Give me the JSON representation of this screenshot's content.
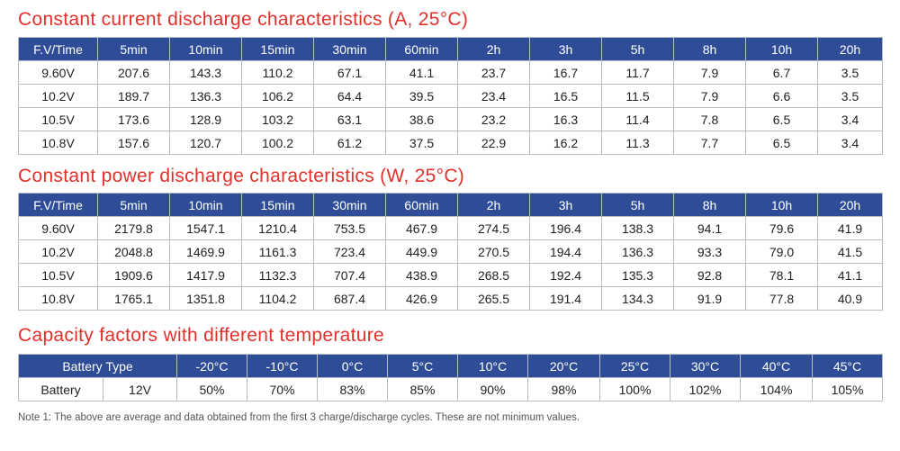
{
  "current": {
    "title": "Constant current discharge characteristics (A, 25°C)",
    "headers": [
      "F.V/Time",
      "5min",
      "10min",
      "15min",
      "30min",
      "60min",
      "2h",
      "3h",
      "5h",
      "8h",
      "10h",
      "20h"
    ],
    "rows": [
      [
        "9.60V",
        "207.6",
        "143.3",
        "110.2",
        "67.1",
        "41.1",
        "23.7",
        "16.7",
        "11.7",
        "7.9",
        "6.7",
        "3.5"
      ],
      [
        "10.2V",
        "189.7",
        "136.3",
        "106.2",
        "64.4",
        "39.5",
        "23.4",
        "16.5",
        "11.5",
        "7.9",
        "6.6",
        "3.5"
      ],
      [
        "10.5V",
        "173.6",
        "128.9",
        "103.2",
        "63.1",
        "38.6",
        "23.2",
        "16.3",
        "11.4",
        "7.8",
        "6.5",
        "3.4"
      ],
      [
        "10.8V",
        "157.6",
        "120.7",
        "100.2",
        "61.2",
        "37.5",
        "22.9",
        "16.2",
        "11.3",
        "7.7",
        "6.5",
        "3.4"
      ]
    ]
  },
  "power": {
    "title": "Constant power discharge characteristics (W, 25°C)",
    "headers": [
      "F.V/Time",
      "5min",
      "10min",
      "15min",
      "30min",
      "60min",
      "2h",
      "3h",
      "5h",
      "8h",
      "10h",
      "20h"
    ],
    "rows": [
      [
        "9.60V",
        "2179.8",
        "1547.1",
        "1210.4",
        "753.5",
        "467.9",
        "274.5",
        "196.4",
        "138.3",
        "94.1",
        "79.6",
        "41.9"
      ],
      [
        "10.2V",
        "2048.8",
        "1469.9",
        "1161.3",
        "723.4",
        "449.9",
        "270.5",
        "194.4",
        "136.3",
        "93.3",
        "79.0",
        "41.5"
      ],
      [
        "10.5V",
        "1909.6",
        "1417.9",
        "1132.3",
        "707.4",
        "438.9",
        "268.5",
        "192.4",
        "135.3",
        "92.8",
        "78.1",
        "41.1"
      ],
      [
        "10.8V",
        "1765.1",
        "1351.8",
        "1104.2",
        "687.4",
        "426.9",
        "265.5",
        "191.4",
        "134.3",
        "91.9",
        "77.8",
        "40.9"
      ]
    ]
  },
  "capacity": {
    "title": "Capacity factors with different temperature",
    "header_label": "Battery Type",
    "temps": [
      "-20°C",
      "-10°C",
      "0°C",
      "5°C",
      "10°C",
      "20°C",
      "25°C",
      "30°C",
      "40°C",
      "45°C"
    ],
    "row_label": "Battery",
    "row_voltage": "12V",
    "values": [
      "50%",
      "70%",
      "83%",
      "85%",
      "90%",
      "98%",
      "100%",
      "102%",
      "104%",
      "105%"
    ]
  },
  "note": "Note 1: The above are average and data obtained from the first 3 charge/discharge cycles. These are not minimum values."
}
